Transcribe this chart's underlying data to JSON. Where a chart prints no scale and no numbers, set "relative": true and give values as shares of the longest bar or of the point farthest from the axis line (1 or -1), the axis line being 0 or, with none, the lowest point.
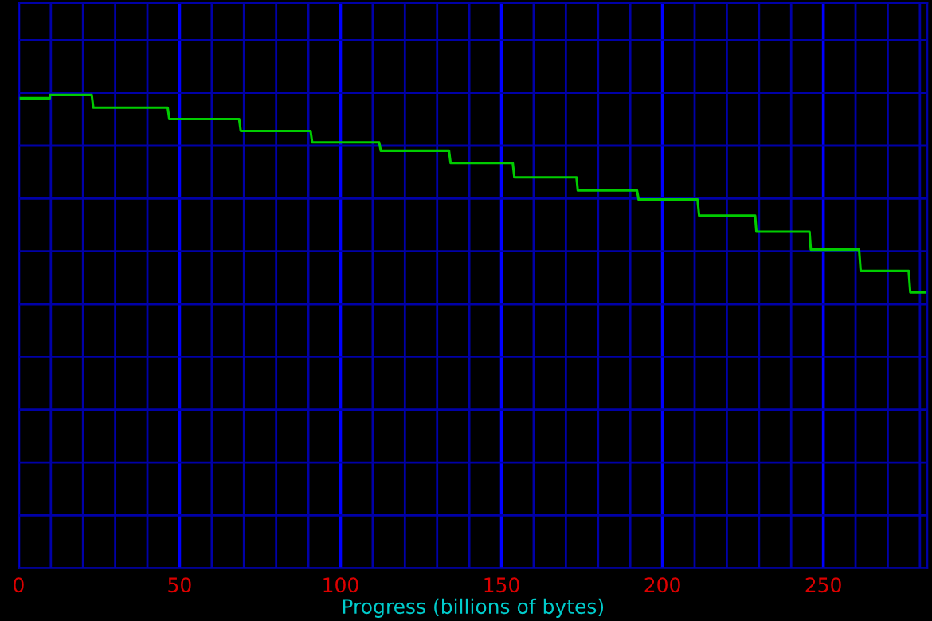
{
  "chart_data": {
    "type": "line",
    "relative": true,
    "xlabel": "Progress (billions of bytes)",
    "xlim": [
      0,
      282.3
    ],
    "xticks": [
      0,
      {
        "value": 10,
        "label": null
      },
      {
        "value": 20,
        "label": null
      },
      {
        "value": 30,
        "label": null
      },
      {
        "value": 40,
        "label": null
      },
      50,
      {
        "value": 60,
        "label": null
      },
      {
        "value": 70,
        "label": null
      },
      {
        "value": 80,
        "label": null
      },
      {
        "value": 90,
        "label": null
      },
      100,
      {
        "value": 110,
        "label": null
      },
      {
        "value": 120,
        "label": null
      },
      {
        "value": 130,
        "label": null
      },
      {
        "value": 140,
        "label": null
      },
      150,
      {
        "value": 160,
        "label": null
      },
      {
        "value": 170,
        "label": null
      },
      {
        "value": 180,
        "label": null
      },
      {
        "value": 190,
        "label": null
      },
      200,
      {
        "value": 210,
        "label": null
      },
      {
        "value": 220,
        "label": null
      },
      {
        "value": 230,
        "label": null
      },
      {
        "value": 240,
        "label": null
      },
      250,
      {
        "value": 260,
        "label": null
      },
      {
        "value": 270,
        "label": null
      },
      {
        "value": 280,
        "label": null
      }
    ],
    "grid": true,
    "marker": "none",
    "line_style": "solid",
    "series": [
      {
        "color": "#00cc00",
        "x": [
          0,
          9.7,
          9.7,
          22.7,
          23.2,
          46.3,
          46.8,
          68.5,
          69.0,
          90.7,
          91.2,
          112,
          112.5,
          133.7,
          134.2,
          153.5,
          154,
          173.3,
          173.7,
          192.1,
          192.6,
          210.9,
          211.4,
          228.8,
          229.2,
          245.7,
          246.1,
          261.1,
          261.6,
          276.5,
          277,
          282.3
        ],
        "values": [
          0.993,
          0.993,
          1.0,
          1.0,
          0.973,
          0.973,
          0.949,
          0.949,
          0.924,
          0.924,
          0.9,
          0.9,
          0.882,
          0.882,
          0.856,
          0.856,
          0.826,
          0.826,
          0.798,
          0.798,
          0.779,
          0.779,
          0.745,
          0.745,
          0.711,
          0.711,
          0.673,
          0.673,
          0.628,
          0.628,
          0.583,
          0.583
        ]
      }
    ]
  }
}
